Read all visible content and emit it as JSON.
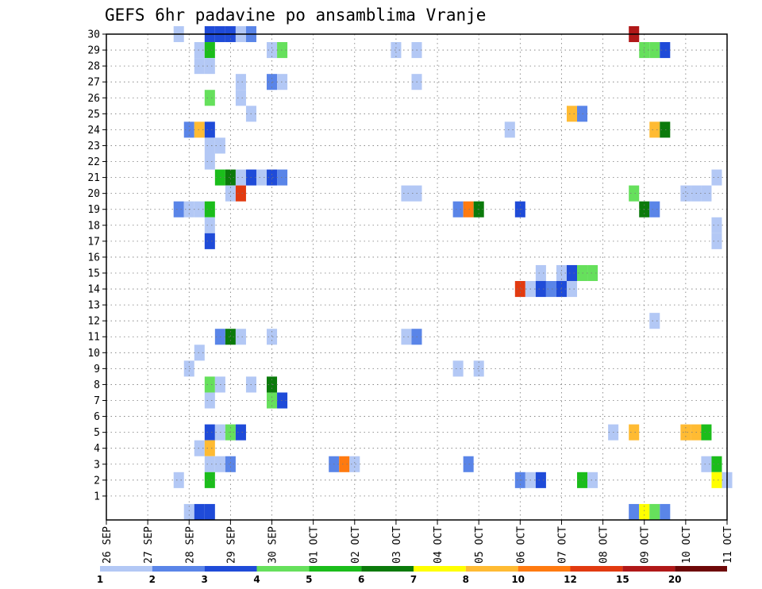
{
  "chart_data": {
    "type": "heatmap",
    "title": "GEFS 6hr padavine po ansamblima Vranje",
    "xlabel": "",
    "ylabel": "",
    "x_tick_labels": [
      "26 SEP",
      "27 SEP",
      "28 SEP",
      "29 SEP",
      "30 SEP",
      "01 OCT",
      "02 OCT",
      "03 OCT",
      "04 OCT",
      "05 OCT",
      "06 OCT",
      "07 OCT",
      "08 OCT",
      "09 OCT",
      "10 OCT",
      "11 OCT"
    ],
    "y_tick_labels": [
      "1",
      "2",
      "3",
      "4",
      "5",
      "6",
      "7",
      "8",
      "9",
      "10",
      "11",
      "12",
      "13",
      "14",
      "15",
      "16",
      "17",
      "18",
      "19",
      "20",
      "21",
      "22",
      "23",
      "24",
      "25",
      "26",
      "27",
      "28",
      "29",
      "30"
    ],
    "x_range_steps": [
      0,
      60
    ],
    "steps_per_day": 4,
    "y_range": [
      0,
      30
    ],
    "grid": true,
    "colorbar": {
      "levels": [
        "1",
        "2",
        "3",
        "4",
        "5",
        "6",
        "7",
        "8",
        "10",
        "12",
        "15",
        "20"
      ],
      "colors": [
        "#b3c8f5",
        "#5a85e8",
        "#1f4bd8",
        "#66e05c",
        "#1bbd1b",
        "#0b7a0b",
        "#ffff00",
        "#ffbb33",
        "#ff7a10",
        "#e23a10",
        "#b01818",
        "#6e0808"
      ]
    },
    "cells_note": "each cell: [member, time_step, color_index]; member 0 is the ensemble control row",
    "cells": [
      [
        30,
        7,
        0
      ],
      [
        30,
        10,
        2
      ],
      [
        30,
        11,
        2
      ],
      [
        30,
        12,
        2
      ],
      [
        30,
        13,
        0
      ],
      [
        30,
        14,
        1
      ],
      [
        30,
        51,
        10
      ],
      [
        29,
        9,
        0
      ],
      [
        29,
        10,
        4
      ],
      [
        29,
        16,
        0
      ],
      [
        29,
        17,
        3
      ],
      [
        29,
        28,
        0
      ],
      [
        29,
        30,
        0
      ],
      [
        29,
        52,
        3
      ],
      [
        29,
        53,
        3
      ],
      [
        29,
        54,
        2
      ],
      [
        28,
        9,
        0
      ],
      [
        28,
        10,
        0
      ],
      [
        27,
        13,
        0
      ],
      [
        27,
        16,
        1
      ],
      [
        27,
        17,
        0
      ],
      [
        27,
        30,
        0
      ],
      [
        26,
        10,
        3
      ],
      [
        26,
        13,
        0
      ],
      [
        25,
        14,
        0
      ],
      [
        25,
        45,
        7
      ],
      [
        25,
        46,
        1
      ],
      [
        24,
        8,
        1
      ],
      [
        24,
        9,
        7
      ],
      [
        24,
        10,
        2
      ],
      [
        24,
        39,
        0
      ],
      [
        24,
        53,
        7
      ],
      [
        24,
        54,
        5
      ],
      [
        23,
        10,
        0
      ],
      [
        23,
        11,
        0
      ],
      [
        22,
        10,
        0
      ],
      [
        21,
        11,
        4
      ],
      [
        21,
        12,
        5
      ],
      [
        21,
        13,
        0
      ],
      [
        21,
        14,
        2
      ],
      [
        21,
        15,
        0
      ],
      [
        21,
        16,
        2
      ],
      [
        21,
        17,
        1
      ],
      [
        21,
        59,
        0
      ],
      [
        20,
        12,
        0
      ],
      [
        20,
        13,
        9
      ],
      [
        20,
        29,
        0
      ],
      [
        20,
        30,
        0
      ],
      [
        20,
        51,
        3
      ],
      [
        20,
        56,
        0
      ],
      [
        20,
        57,
        0
      ],
      [
        20,
        58,
        0
      ],
      [
        19,
        7,
        1
      ],
      [
        19,
        8,
        0
      ],
      [
        19,
        9,
        0
      ],
      [
        19,
        10,
        4
      ],
      [
        19,
        34,
        1
      ],
      [
        19,
        35,
        8
      ],
      [
        19,
        36,
        5
      ],
      [
        19,
        40,
        2
      ],
      [
        19,
        52,
        5
      ],
      [
        19,
        53,
        1
      ],
      [
        18,
        10,
        0
      ],
      [
        18,
        59,
        0
      ],
      [
        17,
        10,
        2
      ],
      [
        17,
        59,
        0
      ],
      [
        15,
        42,
        0
      ],
      [
        15,
        44,
        0
      ],
      [
        15,
        45,
        2
      ],
      [
        15,
        46,
        3
      ],
      [
        15,
        47,
        3
      ],
      [
        14,
        40,
        9
      ],
      [
        14,
        41,
        0
      ],
      [
        14,
        42,
        2
      ],
      [
        14,
        43,
        1
      ],
      [
        14,
        44,
        2
      ],
      [
        14,
        45,
        0
      ],
      [
        12,
        53,
        0
      ],
      [
        11,
        11,
        1
      ],
      [
        11,
        12,
        5
      ],
      [
        11,
        13,
        0
      ],
      [
        11,
        16,
        0
      ],
      [
        11,
        29,
        0
      ],
      [
        11,
        30,
        1
      ],
      [
        10,
        9,
        0
      ],
      [
        9,
        8,
        0
      ],
      [
        9,
        34,
        0
      ],
      [
        9,
        36,
        0
      ],
      [
        8,
        10,
        3
      ],
      [
        8,
        11,
        0
      ],
      [
        8,
        14,
        0
      ],
      [
        8,
        16,
        5
      ],
      [
        7,
        10,
        0
      ],
      [
        7,
        16,
        3
      ],
      [
        7,
        17,
        2
      ],
      [
        5,
        10,
        2
      ],
      [
        5,
        11,
        0
      ],
      [
        5,
        12,
        3
      ],
      [
        5,
        13,
        2
      ],
      [
        5,
        49,
        0
      ],
      [
        5,
        51,
        7
      ],
      [
        5,
        56,
        7
      ],
      [
        5,
        57,
        7
      ],
      [
        5,
        58,
        4
      ],
      [
        4,
        9,
        0
      ],
      [
        4,
        10,
        7
      ],
      [
        3,
        10,
        0
      ],
      [
        3,
        11,
        0
      ],
      [
        3,
        12,
        1
      ],
      [
        3,
        22,
        1
      ],
      [
        3,
        23,
        8
      ],
      [
        3,
        24,
        0
      ],
      [
        3,
        35,
        1
      ],
      [
        3,
        58,
        0
      ],
      [
        3,
        59,
        4
      ],
      [
        2,
        7,
        0
      ],
      [
        2,
        10,
        4
      ],
      [
        2,
        40,
        1
      ],
      [
        2,
        41,
        0
      ],
      [
        2,
        42,
        2
      ],
      [
        2,
        46,
        4
      ],
      [
        2,
        47,
        0
      ],
      [
        2,
        59,
        6
      ],
      [
        2,
        60,
        0
      ],
      [
        0,
        8,
        0
      ],
      [
        0,
        9,
        2
      ],
      [
        0,
        10,
        2
      ],
      [
        0,
        51,
        1
      ],
      [
        0,
        52,
        6
      ],
      [
        0,
        53,
        3
      ],
      [
        0,
        54,
        1
      ]
    ]
  }
}
